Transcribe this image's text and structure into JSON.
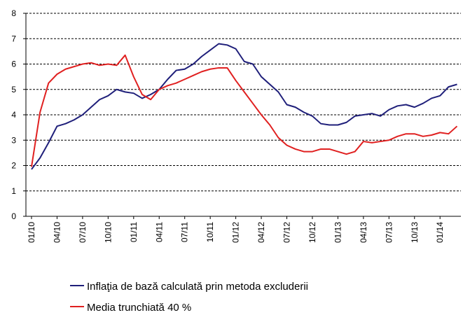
{
  "chart_data": {
    "type": "line",
    "categories": [
      "01/10",
      null,
      null,
      "04/10",
      null,
      null,
      "07/10",
      null,
      null,
      "10/10",
      null,
      null,
      "01/11",
      null,
      null,
      "04/11",
      null,
      null,
      "07/11",
      null,
      null,
      "10/11",
      null,
      null,
      "01/12",
      null,
      null,
      "04/12",
      null,
      null,
      "07/12",
      null,
      null,
      "10/12",
      null,
      null,
      "01/13",
      null,
      null,
      "04/13",
      null,
      null,
      "07/13",
      null,
      null,
      "10/13",
      null,
      null,
      "01/14",
      null,
      null
    ],
    "series": [
      {
        "name": "Inflaţia de bază calculată prin metoda excluderii",
        "color": "#1f1f7a",
        "values": [
          1.85,
          2.3,
          2.9,
          3.55,
          3.65,
          3.8,
          4.0,
          4.3,
          4.6,
          4.75,
          5.0,
          4.9,
          4.85,
          4.65,
          4.8,
          5.0,
          5.4,
          5.75,
          5.8,
          6.0,
          6.3,
          6.55,
          6.8,
          6.75,
          6.6,
          6.1,
          6.0,
          5.5,
          5.2,
          4.9,
          4.4,
          4.3,
          4.1,
          3.95,
          3.65,
          3.6,
          3.6,
          3.7,
          3.95,
          4.0,
          4.05,
          3.95,
          4.2,
          4.35,
          4.4,
          4.3,
          4.45,
          4.65,
          4.75,
          5.1,
          5.2
        ]
      },
      {
        "name": "Media trunchiată 40 %",
        "color": "#e02020",
        "values": [
          1.95,
          4.1,
          5.25,
          5.6,
          5.8,
          5.9,
          6.0,
          6.05,
          5.95,
          6.0,
          5.95,
          6.35,
          5.5,
          4.8,
          4.6,
          5.0,
          5.15,
          5.25,
          5.4,
          5.55,
          5.7,
          5.8,
          5.85,
          5.85,
          5.35,
          4.9,
          4.45,
          4.0,
          3.6,
          3.1,
          2.8,
          2.65,
          2.55,
          2.55,
          2.65,
          2.65,
          2.55,
          2.45,
          2.55,
          2.95,
          2.9,
          2.95,
          3.0,
          3.15,
          3.25,
          3.25,
          3.15,
          3.2,
          3.3,
          3.25,
          3.55
        ]
      }
    ],
    "ylim": [
      0,
      8
    ],
    "yticks": [
      0,
      1,
      2,
      3,
      4,
      5,
      6,
      7,
      8
    ],
    "grid": true
  }
}
